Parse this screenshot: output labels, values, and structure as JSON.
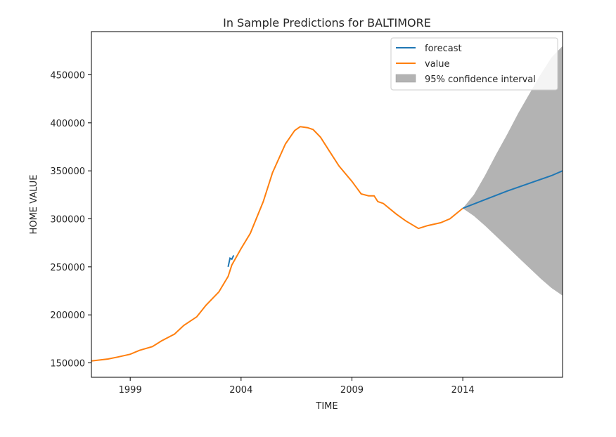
{
  "chart_data": {
    "type": "line",
    "title": "In Sample Predictions for BALTIMORE",
    "xlabel": "TIME",
    "ylabel": "HOME VALUE",
    "xlim": [
      "1997-04",
      "2018-07"
    ],
    "ylim": [
      135000,
      495000
    ],
    "x_ticks": [
      "1999",
      "2004",
      "2009",
      "2014"
    ],
    "y_ticks": [
      150000,
      200000,
      250000,
      300000,
      350000,
      400000,
      450000
    ],
    "grid": false,
    "legend": {
      "position": "upper-right",
      "entries": [
        "forecast",
        "value",
        "95% confidence interval"
      ]
    },
    "colors": {
      "forecast": "#1f77b4",
      "value": "#ff7f0e",
      "confidence": "#b3b3b3"
    },
    "series": [
      {
        "name": "value",
        "x": [
          "1997-04",
          "1998-01",
          "1998-06",
          "1999-01",
          "1999-06",
          "2000-01",
          "2000-06",
          "2001-01",
          "2001-06",
          "2002-01",
          "2002-06",
          "2003-01",
          "2003-06",
          "2003-08",
          "2004-01",
          "2004-06",
          "2005-01",
          "2005-06",
          "2006-01",
          "2006-06",
          "2006-09",
          "2007-01",
          "2007-04",
          "2007-08",
          "2008-01",
          "2008-06",
          "2009-01",
          "2009-06",
          "2009-10",
          "2010-01",
          "2010-03",
          "2010-06",
          "2011-01",
          "2011-06",
          "2012-01",
          "2012-06",
          "2013-01",
          "2013-06",
          "2014-01"
        ],
        "y": [
          152000,
          154000,
          156000,
          159000,
          163000,
          167000,
          173000,
          180000,
          189000,
          198000,
          210000,
          224000,
          240000,
          252000,
          269000,
          285000,
          318000,
          348000,
          378000,
          392000,
          396000,
          395000,
          393000,
          385000,
          370000,
          355000,
          339000,
          326000,
          324000,
          324000,
          318000,
          316000,
          305000,
          298000,
          290000,
          293000,
          296000,
          300000,
          311000
        ]
      },
      {
        "name": "forecast",
        "x": [
          "2003-06",
          "2003-07",
          "2003-08",
          "2003-09",
          "2014-01",
          "2015-01",
          "2016-01",
          "2017-01",
          "2018-01",
          "2018-07"
        ],
        "y": [
          250000,
          259000,
          258000,
          262000,
          311000,
          320000,
          329000,
          337000,
          345000,
          350000
        ]
      }
    ],
    "confidence_interval": {
      "name": "95% confidence interval",
      "x": [
        "2014-01",
        "2014-07",
        "2015-01",
        "2015-07",
        "2016-01",
        "2016-07",
        "2017-01",
        "2017-07",
        "2018-01",
        "2018-07"
      ],
      "lower": [
        311000,
        303000,
        293000,
        282000,
        271000,
        260000,
        249000,
        238000,
        228000,
        220000
      ],
      "upper": [
        311000,
        325000,
        345000,
        367000,
        388000,
        410000,
        430000,
        450000,
        468000,
        480000
      ]
    }
  }
}
